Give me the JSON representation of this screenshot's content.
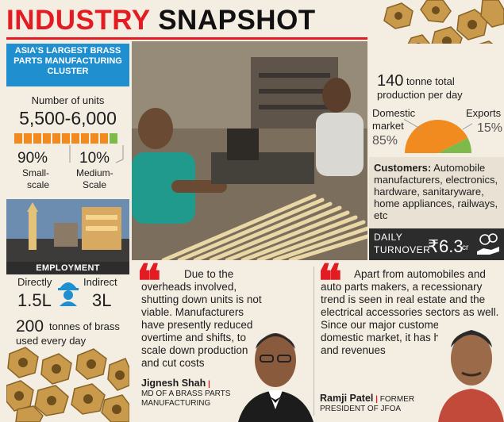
{
  "header": {
    "title_part1": "INDUSTRY",
    "title_part2": "SNAPSHOT"
  },
  "cluster": {
    "heading": "ASIA'S LARGEST BRASS PARTS MANUFACTURING CLUSTER",
    "units_label": "Number of units",
    "units_value": "5,500-6,000",
    "small_pct": "90%",
    "small_label_1": "Small-",
    "small_label_2": "scale",
    "medium_pct": "10%",
    "medium_label_1": "Medium-",
    "medium_label_2": "Scale",
    "small_share": 0.9
  },
  "employment": {
    "heading": "EMPLOYMENT",
    "direct_label": "Directly",
    "direct_value": "1.5L",
    "indirect_label": "Indirect",
    "indirect_value": "3L"
  },
  "brass": {
    "amount": "200",
    "text_1": "tonnes of brass",
    "text_2": "used every day"
  },
  "production": {
    "value": "140",
    "text_1": "tonne total",
    "text_2": "production per day",
    "domestic_label_1": "Domestic",
    "domestic_label_2": "market",
    "domestic_pct": "85%",
    "exports_label": "Exports",
    "exports_pct": "15%",
    "domestic_share": 85,
    "exports_share": 15,
    "colors": {
      "domestic": "#f18a1f",
      "exports": "#7dba4a"
    }
  },
  "customers": {
    "label": "Customers:",
    "text": "Automobile manufacturers, electronics, hardware, sanitaryware, home appliances, railways, etc"
  },
  "turnover": {
    "label_1": "DAILY",
    "label_2": "TURNOVER",
    "value": "₹6.3",
    "unit": "cr"
  },
  "quote1": {
    "text": "Due to the overheads involved, shutting down units is not viable. Manufacturers have presently reduced overtime and shifts, to scale down production and cut costs",
    "name": "Jignesh Shah",
    "role_1": "MD OF A BRASS PARTS",
    "role_2": "MANUFACTURING"
  },
  "quote2": {
    "text": "Apart from automobiles and auto parts makers, a recessionary trend is seen in real estate and the electrical accessories sectors as well. Since our major customers are in the domestic market, it has hurt business and revenues",
    "name": "Ramji Patel",
    "role_1": "FORMER",
    "role_2": "PRESIDENT OF JFOA"
  },
  "colors": {
    "accent_red": "#e31b23",
    "cluster_blue": "#1f8fd0",
    "orange": "#f18a1f",
    "green": "#7dba4a"
  }
}
